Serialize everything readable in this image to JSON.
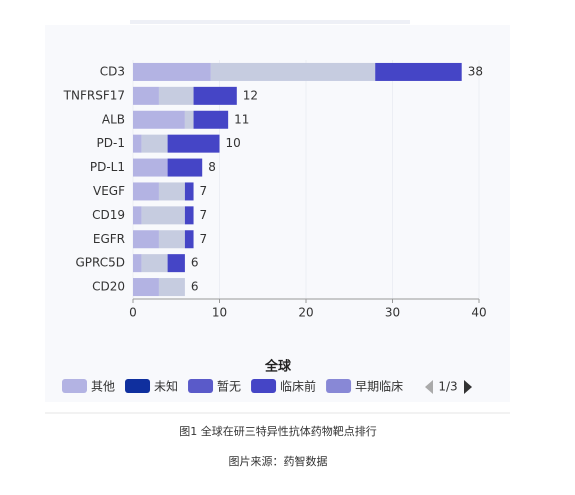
{
  "chart_data": {
    "type": "stacked-bar-horizontal",
    "categories": [
      "CD3",
      "TNFRSF17",
      "ALB",
      "PD-1",
      "PD-L1",
      "VEGF",
      "CD19",
      "EGFR",
      "GPRC5D",
      "CD20"
    ],
    "series": [
      {
        "name": "其他",
        "color": "#b3b3e3",
        "values": [
          9,
          3,
          6,
          1,
          4,
          3,
          1,
          3,
          1,
          3
        ]
      },
      {
        "color": "#c6cce0",
        "values": [
          19,
          4,
          1,
          3,
          0,
          3,
          5,
          3,
          3,
          3
        ]
      },
      {
        "name": "临床前",
        "color": "#4545c6",
        "values": [
          10,
          5,
          4,
          6,
          4,
          1,
          1,
          1,
          2,
          0
        ]
      }
    ],
    "totals": [
      38,
      12,
      11,
      10,
      8,
      7,
      7,
      7,
      6,
      6
    ],
    "xlim": [
      0,
      40
    ],
    "xticks": [
      0,
      10,
      20,
      30,
      40
    ],
    "grid": true,
    "legend": {
      "title": "全球",
      "position": "bottom",
      "page": "1/3",
      "items": [
        {
          "name": "其他",
          "color": "#b3b3e3"
        },
        {
          "name": "未知",
          "color": "#0f2f9e"
        },
        {
          "name": "暂无",
          "color": "#5a5ac9"
        },
        {
          "name": "临床前",
          "color": "#4545c6"
        },
        {
          "name": "早期临床",
          "color": "#8888d6"
        }
      ]
    }
  },
  "caption": {
    "title": "图1 全球在研三特异性抗体药物靶点排行",
    "source": "图片来源：药智数据"
  }
}
